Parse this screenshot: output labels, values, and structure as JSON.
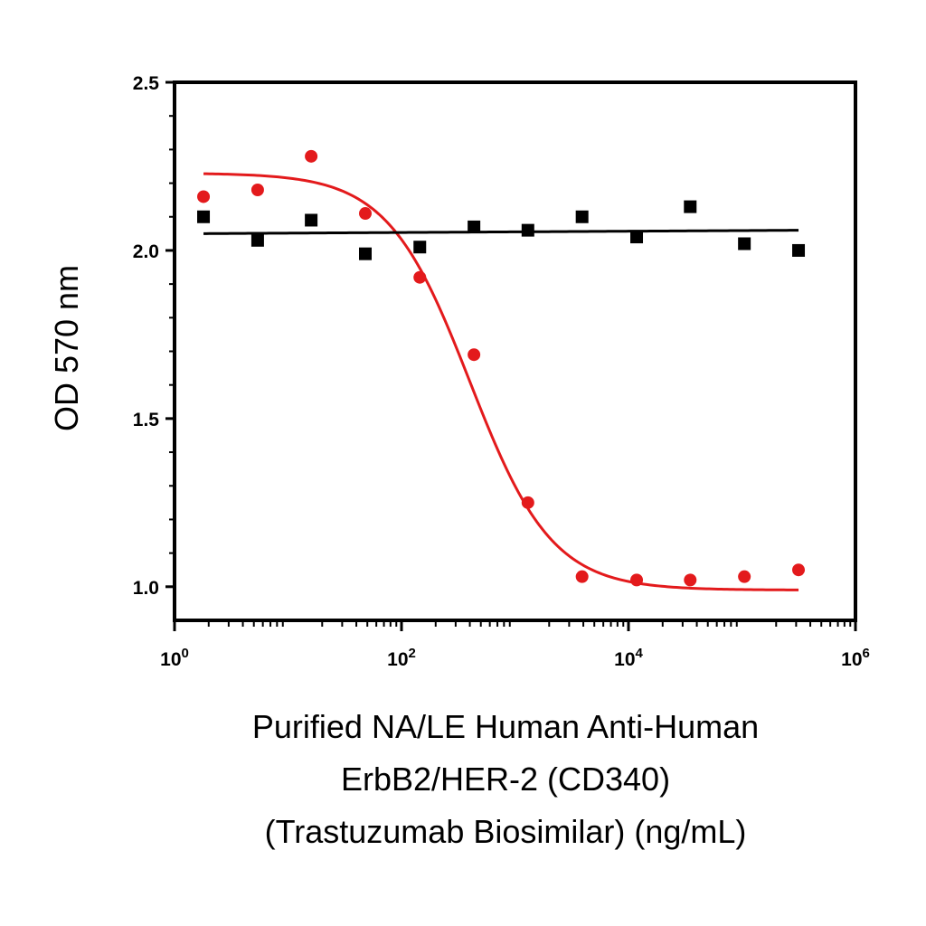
{
  "chart_data": {
    "type": "scatter",
    "title": "",
    "ylabel": "OD 570 nm",
    "xlabel_lines": [
      "Purified NA/LE Human Anti-Human",
      "ErbB2/HER-2 (CD340)",
      "(Trastuzumab Biosimilar) (ng/mL)"
    ],
    "x_scale": "log10",
    "xlim": [
      1,
      1000000
    ],
    "ylim": [
      0.9,
      2.5
    ],
    "y_ticks": [
      {
        "value": 1.0,
        "label": "1.0"
      },
      {
        "value": 1.5,
        "label": "1.5"
      },
      {
        "value": 2.0,
        "label": "2.0"
      },
      {
        "value": 2.5,
        "label": "2.5"
      }
    ],
    "x_ticks": [
      {
        "value": 1,
        "base": "10",
        "exp": "0"
      },
      {
        "value": 100,
        "base": "10",
        "exp": "2"
      },
      {
        "value": 10000,
        "base": "10",
        "exp": "4"
      },
      {
        "value": 1000000,
        "base": "10",
        "exp": "6"
      }
    ],
    "grid": false,
    "series": [
      {
        "color": "#e31a1c",
        "marker": "circle",
        "x": [
          1.8,
          5.4,
          16,
          48,
          145,
          435,
          1300,
          3900,
          11800,
          35000,
          105000,
          315000
        ],
        "y": [
          2.16,
          2.18,
          2.28,
          2.11,
          1.92,
          1.69,
          1.25,
          1.03,
          1.02,
          1.02,
          1.03,
          1.05
        ],
        "fit": {
          "model": "4PL",
          "top": 2.23,
          "bottom": 0.99,
          "ec50": 400,
          "hill": 1.2,
          "x_range": [
            1.8,
            315000
          ]
        }
      },
      {
        "color": "#000000",
        "marker": "square",
        "x": [
          1.8,
          5.4,
          16,
          48,
          145,
          435,
          1300,
          3900,
          11800,
          35000,
          105000,
          315000
        ],
        "y": [
          2.1,
          2.03,
          2.09,
          1.99,
          2.01,
          2.07,
          2.06,
          2.1,
          2.04,
          2.13,
          2.02,
          2.0
        ],
        "fit": {
          "model": "linear",
          "y_start": 2.05,
          "y_end": 2.06,
          "x_range": [
            1.8,
            315000
          ]
        }
      }
    ]
  }
}
